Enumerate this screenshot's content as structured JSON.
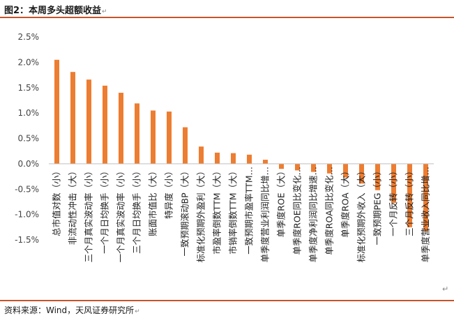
{
  "header": {
    "title": "图2：本周多头超额收益",
    "return_mark": "↵"
  },
  "footer": {
    "source": "资料来源：Wind，天风证券研究所",
    "return_mark": "↵",
    "end_mark": "↵"
  },
  "colors": {
    "bar": "#ed7d31",
    "rule": "#c6532a",
    "axis": "#bfbfbf"
  },
  "chart_data": {
    "type": "bar",
    "title": "",
    "xlabel": "",
    "ylabel": "",
    "ylim": [
      -1.5,
      2.5
    ],
    "yticks": [
      2.5,
      2.0,
      1.5,
      1.0,
      0.5,
      0.0,
      -0.5,
      -1.0,
      -1.5
    ],
    "ytick_labels": [
      "2.5%",
      "2.0%",
      "1.5%",
      "1.0%",
      "0.5%",
      "0.0%",
      "-0.5%",
      "-1.0%",
      "-1.5%"
    ],
    "grid": false,
    "legend": "none",
    "categories": [
      "总市值对数（小）",
      "非流动性冲击（大）",
      "三个月真实波动率（小）",
      "一个月日均换手（小）",
      "一个月真实波动率（小）",
      "三个月日均换手（小）",
      "账面市值比（大）",
      "特异度（小）",
      "一致预期滚动BP（大）",
      "标准化预期外盈利（大）",
      "市盈率倒数TTM（大）",
      "市销率倒数TTM（大）",
      "一致预期市盈率TTM…",
      "单季度营业利润同比增…",
      "单季度ROE（大）",
      "单季度ROE同比变化…",
      "单季度净利润同比增速…",
      "单季度ROA同比变化…",
      "单季度ROA（大）",
      "标准化预期外收入（大）",
      "一致预期PEG（小）",
      "一个月反转（小）",
      "三个月反转（小）",
      "单季度营业收入同比增…"
    ],
    "values": [
      2.05,
      1.81,
      1.66,
      1.54,
      1.4,
      1.19,
      1.05,
      1.03,
      0.72,
      0.34,
      0.22,
      0.21,
      0.18,
      0.08,
      -0.1,
      -0.13,
      -0.16,
      -0.19,
      -0.27,
      -0.39,
      -0.52,
      -0.77,
      -1.25,
      -1.33
    ]
  }
}
